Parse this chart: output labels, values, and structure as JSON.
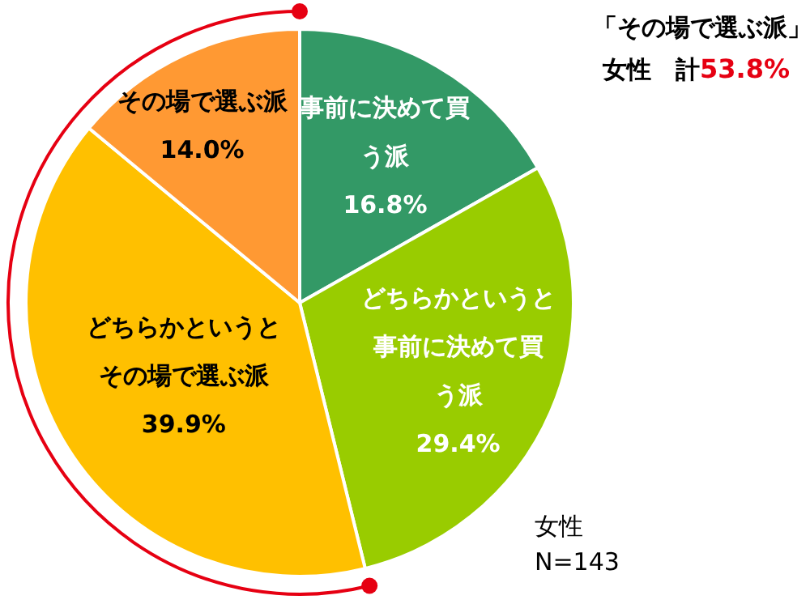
{
  "chart_data": {
    "type": "pie",
    "categories": [
      "事前に決めて買う派",
      "どちらかというと事前に決めて買う派",
      "どちらかというとその場で選ぶ派",
      "その場で選ぶ派"
    ],
    "values": [
      16.8,
      29.4,
      39.9,
      14.0
    ],
    "value_labels": [
      "16.8%",
      "29.4%",
      "39.9%",
      "14.0%"
    ],
    "colors": [
      "#339966",
      "#99cc00",
      "#ffc000",
      "#ff9933"
    ],
    "annotations": [
      "「その場で選ぶ派」",
      "女性　計",
      "53.8%",
      "女性",
      "N=143"
    ]
  }
}
